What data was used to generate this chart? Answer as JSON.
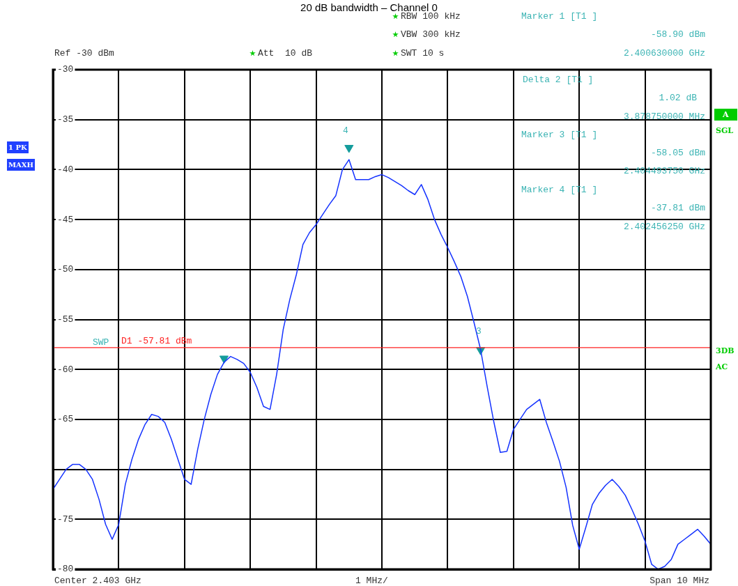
{
  "chart_data": {
    "type": "line",
    "title": "20 dB bandwidth – Channel 0",
    "categories": [
      null,
      null,
      null,
      null,
      null,
      null,
      null,
      null,
      null,
      null,
      null,
      null,
      null,
      null,
      null,
      null,
      null,
      null,
      null,
      null,
      null,
      null,
      null,
      null,
      null,
      null,
      null,
      null,
      null,
      null,
      null,
      null,
      null,
      null,
      null,
      null,
      null,
      null,
      null,
      null,
      null,
      null,
      null,
      null,
      null,
      null,
      null,
      null,
      null,
      null,
      null,
      null,
      null,
      null,
      null,
      null,
      null,
      null,
      null,
      null,
      null,
      null,
      null,
      null,
      null,
      null,
      null,
      null,
      null,
      null,
      null,
      null,
      null,
      null,
      null,
      null,
      null,
      null,
      null,
      null,
      null,
      null,
      null,
      null,
      null,
      null,
      null,
      null,
      null,
      null,
      null,
      null,
      null,
      null,
      null,
      null,
      null,
      null,
      null,
      null,
      null
    ],
    "ylim": [
      -80,
      -30
    ],
    "yticks": [
      -30,
      -35,
      -40,
      -45,
      -50,
      -55,
      -60,
      -65,
      {
        "value": -70,
        "label": null
      },
      -75,
      -80
    ],
    "grid": true,
    "legend": false,
    "tick_labels": "y",
    "marker": "none",
    "line_style": "solid",
    "series": [
      {
        "color": "#1432ff",
        "values": [
          -72,
          -71,
          -70,
          -69.5,
          -69.5,
          -70,
          -71,
          -73,
          -75.5,
          -77,
          -75.5,
          -71.5,
          -69,
          -67,
          -65.5,
          -64.5,
          -64.7,
          -65.3,
          -67,
          -69,
          -71,
          -71.5,
          -68,
          -65,
          -62.5,
          -60.5,
          -59.3,
          -58.7,
          -59,
          -59.4,
          -60.3,
          -61.8,
          -63.7,
          -64,
          -60.5,
          -56,
          -53,
          -50.5,
          -47.5,
          -46.3,
          -45.5,
          -44.5,
          -43.5,
          -42.6,
          -40,
          -39,
          -41,
          -41,
          -41,
          -40.7,
          -40.5,
          -40.8,
          -41.2,
          -41.6,
          -42.1,
          -42.5,
          -41.5,
          -43,
          -45,
          -46.5,
          -47.8,
          -49.2,
          -50.7,
          -52.7,
          -55.3,
          -58,
          -61.7,
          -65.2,
          -68.3,
          -68.2,
          -66,
          -65,
          -64,
          -63.5,
          -63,
          -65.3,
          -67.2,
          -69.2,
          -71.8,
          -75.6,
          -78,
          -75.8,
          -73.5,
          -72.4,
          -71.6,
          -71,
          -71.7,
          -72.6,
          -74,
          -75.5,
          -77.2,
          -79.5,
          -80,
          -79.7,
          -79,
          -77.5,
          -77,
          -76.5,
          -76,
          -76.7,
          -77.5
        ]
      },
      {
        "type": "scatter",
        "color": "#149c9c",
        "marker": "triangle",
        "values": [
          null,
          null,
          null,
          null,
          null,
          null,
          null,
          null,
          null,
          null,
          null,
          null,
          null,
          null,
          null,
          null,
          null,
          null,
          null,
          null,
          null,
          null,
          null,
          null,
          null,
          null,
          -58.9,
          null,
          null,
          null,
          null,
          null,
          null,
          null,
          null,
          null,
          null,
          null,
          null,
          null,
          null,
          null,
          null,
          null,
          null,
          -37.81,
          null,
          null,
          null,
          null,
          null,
          null,
          null,
          null,
          null,
          null,
          null,
          null,
          null,
          null,
          null,
          null,
          null,
          null,
          null,
          -58.05,
          null,
          null,
          null,
          null,
          null,
          null,
          null,
          null,
          null,
          null,
          null,
          null,
          null,
          null,
          null,
          null,
          null,
          null,
          null,
          null,
          null,
          null,
          null,
          null,
          null,
          null,
          null,
          null,
          null,
          null,
          null,
          null,
          null,
          null,
          null
        ]
      }
    ],
    "ref_lines": [
      {
        "axis": "y",
        "value": -57.81,
        "label": "D1 -57.81 dBm",
        "color": "#ff2020"
      }
    ],
    "annotations": [
      "Ref -30 dBm",
      "Att  10 dB",
      "RBW 100 kHz",
      "VBW 300 kHz",
      "SWT 10 s",
      "Marker 1 [T1 ]",
      "-58.90 dBm",
      "2.400630000 GHz",
      "Delta 2 [T1 ]",
      "1.02 dB",
      "3.878750000 MHz",
      "Marker 3 [T1 ]",
      "-58.05 dBm",
      "2.404493750 GHz",
      "Marker 4 [T1 ]",
      "-37.81 dBm",
      "2.402456250 GHz",
      "Center 2.403 GHz",
      "1 MHz/",
      "Span 10 MHz",
      "1 PK",
      "MAXH",
      "A",
      "SGL",
      "3DB",
      "AC",
      "SWP",
      "4",
      "3"
    ]
  }
}
